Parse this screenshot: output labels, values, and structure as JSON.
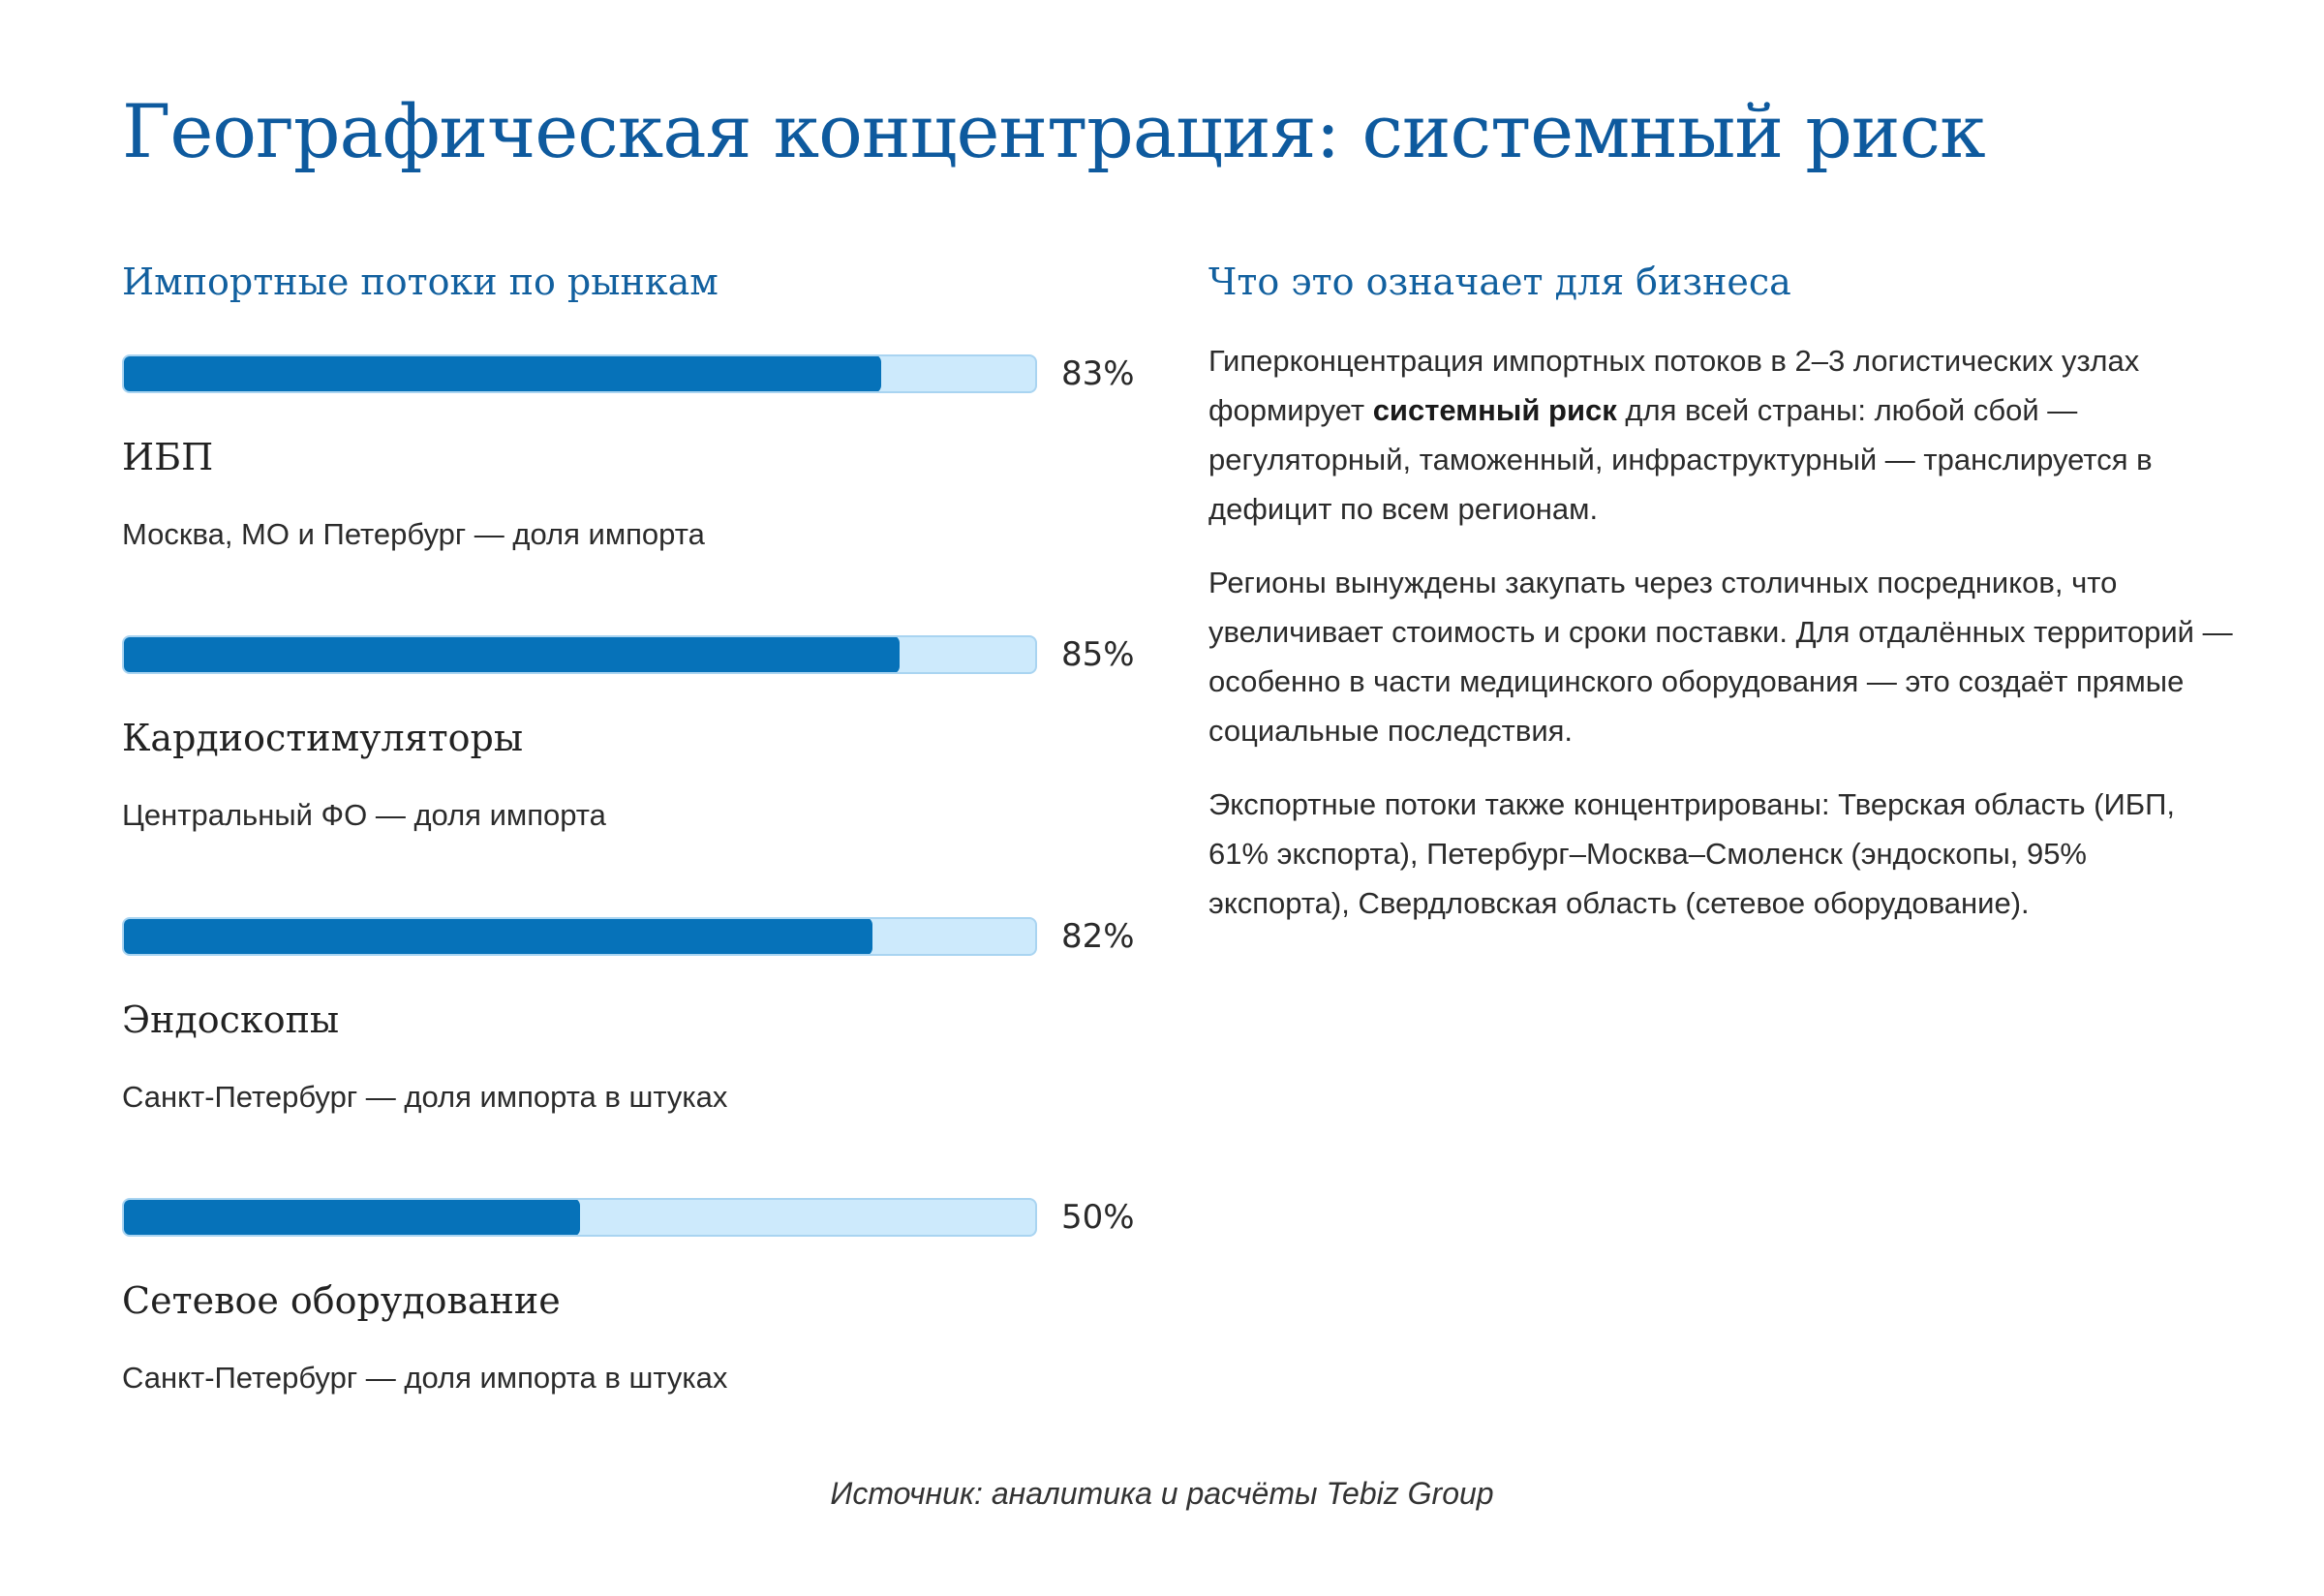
{
  "title": "Географическая концентрация: системный риск",
  "left_heading": "Импортные потоки по рынкам",
  "right_heading": "Что это означает для бизнеса",
  "colors": {
    "title": "#0e5a9e",
    "bar_fill": "#0672b9",
    "bar_track": "#cdeafc"
  },
  "chart_data": {
    "type": "bar",
    "orientation": "horizontal",
    "categories": [
      "ИБП",
      "Кардиостимуляторы",
      "Эндоскопы",
      "Сетевое оборудование"
    ],
    "values": [
      83,
      85,
      82,
      50
    ],
    "value_labels": [
      "83%",
      "85%",
      "82%",
      "50%"
    ],
    "notes": [
      "Москва, МО и Петербург — доля импорта",
      "Центральный ФО — доля импорта",
      "Санкт-Петербург — доля импорта в штуках",
      "Санкт-Петербург — доля импорта в штуках"
    ],
    "xlim": [
      0,
      100
    ],
    "grid": false,
    "legend": "none"
  },
  "paragraphs": {
    "p1_before": "Гиперконцентрация импортных потоков в 2–3 логистических узлах формирует ",
    "p1_bold": "системный риск",
    "p1_after": " для всей страны: любой сбой — регуляторный, таможенный, инфраструктурный — транслируется в дефицит по всем регионам.",
    "p2": "Регионы вынуждены закупать через столичных посредников, что увеличивает стоимость и сроки поставки. Для отдалённых территорий — особенно в части медицинского оборудования — это создаёт прямые социальные последствия.",
    "p3": "Экспортные потоки также концентрированы: Тверская область (ИБП, 61% экспорта), Петербург–Москва–Смоленск (эндоскопы, 95% экспорта), Свердловская область (сетевое оборудование)."
  },
  "source": "Источник: аналитика и расчёты Tebiz Group"
}
